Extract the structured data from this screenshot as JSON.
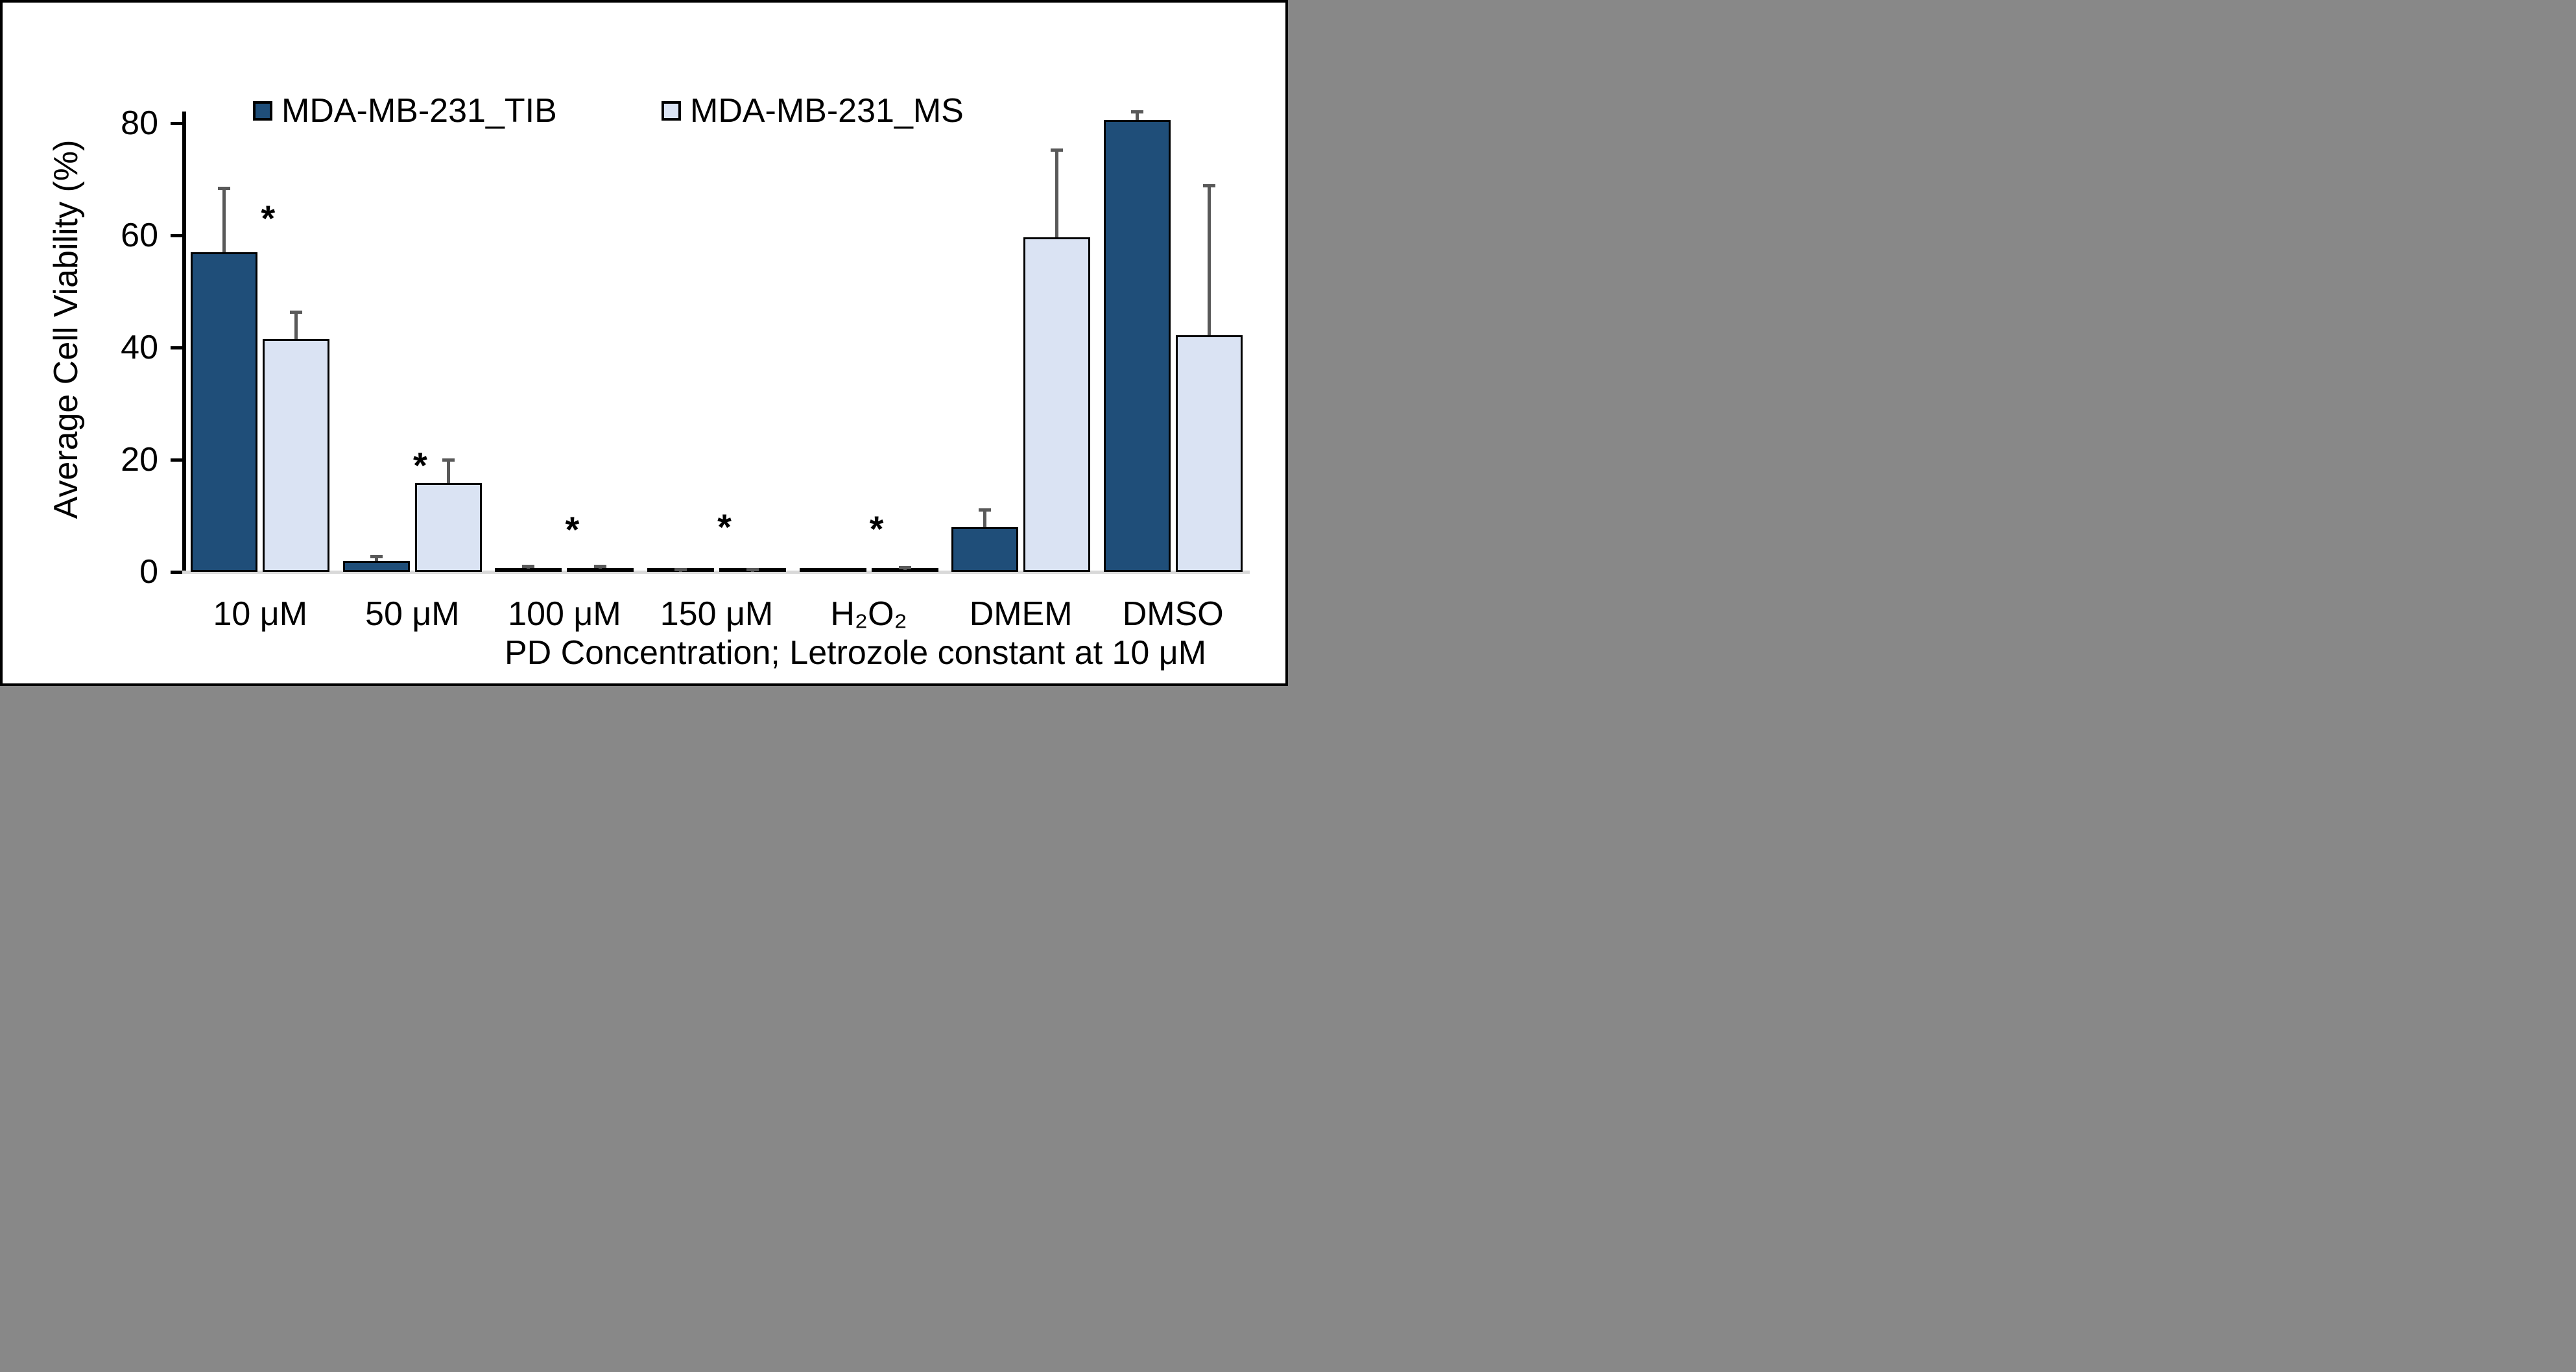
{
  "figure": {
    "background": "#ffffff",
    "border_color": "#000000"
  },
  "legend": {
    "items": [
      {
        "label": "MDA-MB-231_TIB",
        "color": "#1F4E79"
      },
      {
        "label": "MDA-MB-231_MS",
        "color": "#DAE3F3"
      }
    ]
  },
  "axes": {
    "y_title": "Average Cell Viability (%)",
    "x_title": "PD Concentration; Letrozole constant at 10 μM",
    "y_ticks": [
      0,
      20,
      40,
      60,
      80
    ]
  },
  "chart_data": {
    "type": "bar",
    "title": "",
    "categories": [
      "10 μM",
      "50 μM",
      "100 μM",
      "150 μM",
      "H₂O₂",
      "DMEM",
      "DMSO"
    ],
    "series": [
      {
        "name": "MDA-MB-231_TIB",
        "color": "#1F4E79",
        "values": [
          57,
          2,
          0.7,
          0.2,
          0.15,
          8,
          80.6
        ],
        "error_plus": [
          11.3,
          0.7,
          0.2,
          0.2,
          0,
          3,
          1.4
        ]
      },
      {
        "name": "MDA-MB-231_MS",
        "color": "#DAE3F3",
        "values": [
          41.5,
          15.8,
          0.7,
          0.2,
          0.5,
          59.6,
          42.2
        ],
        "error_plus": [
          4.7,
          4.1,
          0.2,
          0.2,
          0.15,
          15.5,
          26.6
        ]
      }
    ],
    "xlabel": "PD Concentration; Letrozole constant at 10 μM",
    "ylabel": "Average Cell Viability (%)",
    "ylim": [
      0,
      80
    ],
    "grid": false,
    "legend_position": "top",
    "bar_outline_color": "#000000",
    "error_bar_color": "#595959",
    "axis_baseline_color": "#D9D9D9",
    "significance_markers": [
      {
        "category": "10 μM",
        "symbol": "*",
        "y": 64
      },
      {
        "category": "50 μM",
        "symbol": "*",
        "y": 20
      },
      {
        "category": "100 μM",
        "symbol": "*",
        "y": 8.5
      },
      {
        "category": "150 μM",
        "symbol": "*",
        "y": 9
      },
      {
        "category": "H₂O₂",
        "symbol": "*",
        "y": 8.7
      }
    ]
  }
}
